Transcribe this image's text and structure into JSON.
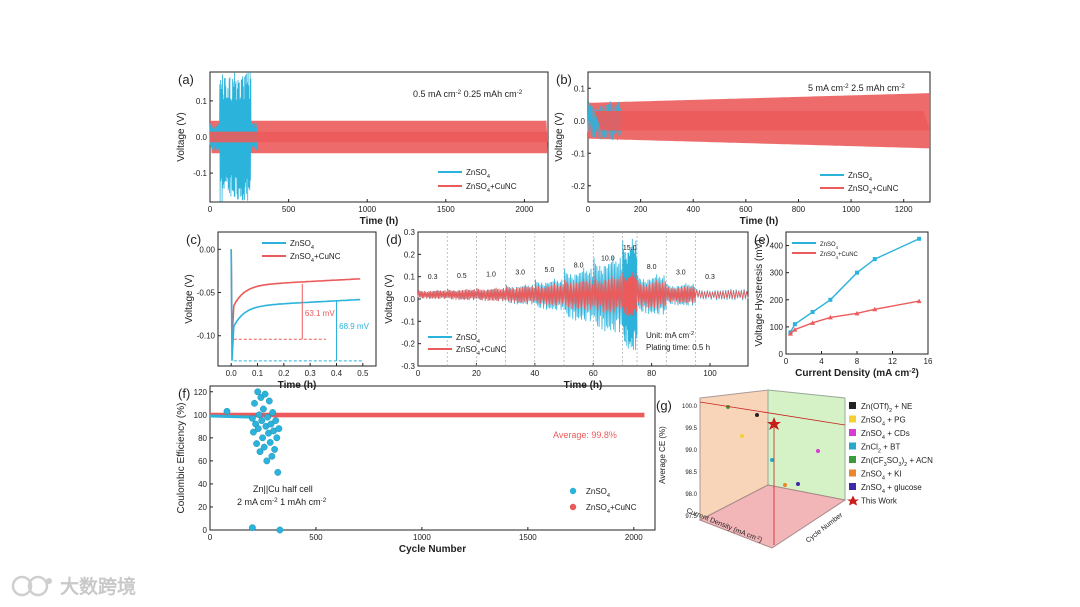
{
  "colors": {
    "znso4": "#2bb3dc",
    "cunc": "#ec5b5b",
    "axis": "#222222"
  },
  "chart_data": [
    {
      "panel": "(a)",
      "type": "line",
      "xlabel": "Time (h)",
      "ylabel": "Voltage (V)",
      "xlim": [
        0,
        2150
      ],
      "ylim": [
        -0.18,
        0.18
      ],
      "xticks": [
        0,
        500,
        1000,
        1500,
        2000
      ],
      "yticks": [
        -0.1,
        0.0,
        0.1
      ],
      "xticklabels": [
        "0",
        "500",
        "1000",
        "1500",
        "2000"
      ],
      "yticklabels": [
        "-0.1",
        "0.0",
        "0.1"
      ],
      "annotation1": "0.5 mA cm",
      "annotation2": "0.25 mAh cm",
      "series": [
        {
          "name": "ZnSO",
          "sub": "4",
          "x_end": 300,
          "amplitude_stable": 0.04,
          "amplitude_max": 0.18,
          "short_circuit_after": 120
        },
        {
          "name": "ZnSO",
          "sub": "4",
          "tail": "+CuNC",
          "x_end": 2150,
          "amplitude": 0.045
        }
      ]
    },
    {
      "panel": "(b)",
      "type": "line",
      "xlabel": "Time (h)",
      "ylabel": "Voltage (V)",
      "xlim": [
        0,
        1300
      ],
      "ylim": [
        -0.25,
        0.15
      ],
      "xticks": [
        0,
        200,
        400,
        600,
        800,
        1000,
        1200
      ],
      "yticks": [
        -0.2,
        -0.1,
        0.0,
        0.1
      ],
      "xticklabels": [
        "0",
        "200",
        "400",
        "600",
        "800",
        "1000",
        "1200"
      ],
      "yticklabels": [
        "-0.2",
        "-0.1",
        "0.0",
        "0.1"
      ],
      "annotation1": "5 mA cm",
      "annotation2": "2.5 mAh cm",
      "series": [
        {
          "name": "ZnSO",
          "sub": "4",
          "x_end": 125,
          "amplitude": 0.06
        },
        {
          "name": "ZnSO",
          "sub": "4",
          "tail": "+CuNC",
          "x_end": 1300,
          "amplitude_start": 0.055,
          "amplitude_end": 0.085
        }
      ]
    },
    {
      "panel": "(c)",
      "type": "line",
      "xlabel": "Time (h)",
      "ylabel": "Voltage (V)",
      "xlim": [
        -0.05,
        0.55
      ],
      "ylim": [
        -0.135,
        0.02
      ],
      "xticks": [
        0.0,
        0.1,
        0.2,
        0.3,
        0.4,
        0.5
      ],
      "yticks": [
        -0.1,
        -0.05,
        0.0
      ],
      "xticklabels": [
        "0.0",
        "0.1",
        "0.2",
        "0.3",
        "0.4",
        "0.5"
      ],
      "yticklabels": [
        "-0.10",
        "-0.05",
        "0.00"
      ],
      "series": [
        {
          "name": "ZnSO",
          "sub": "4",
          "nucleation_v": -0.129,
          "plateau_v": -0.058
        },
        {
          "name": "ZnSO",
          "sub": "4",
          "tail": "+CuNC",
          "nucleation_v": -0.104,
          "plateau_v": -0.034
        }
      ],
      "overpotential_cunc": "63.1 mV",
      "overpotential_znso4": "68.9 mV"
    },
    {
      "panel": "(d)",
      "type": "line",
      "xlabel": "Time (h)",
      "ylabel": "Voltage (V)",
      "xlim": [
        0,
        113
      ],
      "ylim": [
        -0.3,
        0.3
      ],
      "xticks": [
        0,
        20,
        40,
        60,
        80,
        100
      ],
      "yticks": [
        -0.3,
        -0.2,
        -0.1,
        0.0,
        0.1,
        0.2,
        0.3
      ],
      "xticklabels": [
        "0",
        "20",
        "40",
        "60",
        "80",
        "100"
      ],
      "yticklabels": [
        "-0.3",
        "-0.2",
        "-0.1",
        "0.0",
        "0.1",
        "0.2",
        "0.3"
      ],
      "rate_segments": [
        {
          "label": "0.3",
          "start": 0,
          "end": 10,
          "amp_cunc": 0.02,
          "amp_znso4": 0.02
        },
        {
          "label": "0.5",
          "start": 10,
          "end": 20,
          "amp_cunc": 0.025,
          "amp_znso4": 0.025
        },
        {
          "label": "1.0",
          "start": 20,
          "end": 30,
          "amp_cunc": 0.03,
          "amp_znso4": 0.03
        },
        {
          "label": "3.0",
          "start": 30,
          "end": 40,
          "amp_cunc": 0.04,
          "amp_znso4": 0.045
        },
        {
          "label": "5.0",
          "start": 40,
          "end": 50,
          "amp_cunc": 0.05,
          "amp_znso4": 0.07
        },
        {
          "label": "8.0",
          "start": 50,
          "end": 60,
          "amp_cunc": 0.07,
          "amp_znso4": 0.12
        },
        {
          "label": "10.0",
          "start": 60,
          "end": 70,
          "amp_cunc": 0.085,
          "amp_znso4": 0.17
        },
        {
          "label": "15.0",
          "start": 70,
          "end": 75,
          "amp_cunc": 0.1,
          "amp_znso4": 0.25
        },
        {
          "label": "8.0",
          "start": 75,
          "end": 85,
          "amp_cunc": 0.065,
          "amp_znso4": 0.09
        },
        {
          "label": "3.0",
          "start": 85,
          "end": 95,
          "amp_cunc": 0.04,
          "amp_znso4": 0.05
        },
        {
          "label": "0.3",
          "start": 95,
          "end": 113,
          "amp_cunc": 0.02,
          "amp_znso4": 0.025
        }
      ],
      "unit_text": "Unit: mA cm",
      "plating_text": "Plating time:  0.5 h",
      "series": [
        {
          "name": "ZnSO",
          "sub": "4"
        },
        {
          "name": "ZnSO",
          "sub": "4",
          "tail": "+CuNC"
        }
      ]
    },
    {
      "panel": "(e)",
      "type": "line",
      "xlabel": "Current Density (mA cm",
      "ylabel": "Voltage Hysteresis (mV)",
      "xlim": [
        0,
        16
      ],
      "ylim": [
        0,
        450
      ],
      "xticks": [
        0,
        4,
        8,
        12,
        16
      ],
      "yticks": [
        0,
        100,
        200,
        300,
        400
      ],
      "xticklabels": [
        "0",
        "4",
        "8",
        "12",
        "16"
      ],
      "yticklabels": [
        "0",
        "100",
        "200",
        "300",
        "400"
      ],
      "x": [
        0.5,
        1,
        3,
        5,
        8,
        10,
        15
      ],
      "series": [
        {
          "name": "ZnSO",
          "sub": "4",
          "values": [
            80,
            110,
            155,
            200,
            300,
            350,
            425
          ]
        },
        {
          "name": "ZnSO",
          "sub": "4",
          "tail": "+CuNC",
          "values": [
            75,
            90,
            115,
            135,
            150,
            165,
            195
          ]
        }
      ]
    },
    {
      "panel": "(f)",
      "type": "scatter",
      "xlabel": "Cycle Number",
      "ylabel": "Coulombic Efficiency (%)",
      "xlim": [
        0,
        2100
      ],
      "ylim": [
        0,
        125
      ],
      "xticks": [
        0,
        500,
        1000,
        1500,
        2000
      ],
      "yticks": [
        0,
        20,
        40,
        60,
        80,
        100,
        120
      ],
      "xticklabels": [
        "0",
        "500",
        "1000",
        "1500",
        "2000"
      ],
      "yticklabels": [
        "0",
        "20",
        "40",
        "60",
        "80",
        "100",
        "120"
      ],
      "average_text": "Average: 99.8%",
      "cell_text": "Zn||Cu  half cell",
      "cond_text": "2 mA cm",
      "cond_text2": "1 mAh cm",
      "series": [
        {
          "name": "ZnSO",
          "sub": "4",
          "points": [
            [
              80,
              103
            ],
            [
              200,
              97
            ],
            [
              205,
              85
            ],
            [
              210,
              110
            ],
            [
              215,
              92
            ],
            [
              220,
              75
            ],
            [
              225,
              120
            ],
            [
              228,
              88
            ],
            [
              232,
              100
            ],
            [
              236,
              68
            ],
            [
              240,
              115
            ],
            [
              244,
              95
            ],
            [
              248,
              80
            ],
            [
              252,
              105
            ],
            [
              256,
              72
            ],
            [
              260,
              118
            ],
            [
              264,
              90
            ],
            [
              268,
              60
            ],
            [
              272,
              98
            ],
            [
              276,
              84
            ],
            [
              280,
              112
            ],
            [
              284,
              76
            ],
            [
              288,
              92
            ],
            [
              292,
              64
            ],
            [
              296,
              102
            ],
            [
              300,
              86
            ],
            [
              305,
              70
            ],
            [
              310,
              95
            ],
            [
              315,
              80
            ],
            [
              320,
              50
            ],
            [
              325,
              88
            ],
            [
              200,
              2
            ],
            [
              330,
              0
            ]
          ]
        },
        {
          "name": "ZnSO",
          "sub": "4",
          "tail": "+CuNC",
          "x_start": 0,
          "x_end": 2050,
          "value": 99.8
        }
      ]
    },
    {
      "panel": "(g)",
      "type": "scatter",
      "zlabel": "Average CE (%)",
      "xlabel": "Current Density (mA cm",
      "ylabel": "Cycle Number",
      "zticks": [
        "97.5",
        "98.0",
        "98.5",
        "99.0",
        "99.5",
        "100.0"
      ],
      "legend": [
        {
          "label": "Zn(OTf)",
          "sub": "2",
          "tail": " + NE",
          "color": "#222222",
          "marker": "square"
        },
        {
          "label": "ZnSO",
          "sub": "4",
          "tail": " + PG",
          "color": "#f2d233",
          "marker": "square"
        },
        {
          "label": "ZnSO",
          "sub": "4",
          "tail": " + CDs",
          "color": "#d43cd4",
          "marker": "square"
        },
        {
          "label": "ZnCl",
          "sub": "2",
          "tail": " + BT",
          "color": "#2aa7c9",
          "marker": "square"
        },
        {
          "label": "Zn(CF",
          "sub": "3",
          "tail": "SO",
          "sub2": "3",
          "tail2": ")",
          "sub3": "2",
          "tail3": " + ACN",
          "color": "#3c9a3c",
          "marker": "square"
        },
        {
          "label": "ZnSO",
          "sub": "4",
          "tail": " + KI",
          "color": "#e8862b",
          "marker": "square"
        },
        {
          "label": "ZnSO",
          "sub": "4",
          "tail": " + glucose",
          "color": "#3c2aa8",
          "marker": "square"
        },
        {
          "label": "This Work",
          "color": "#c81e1e",
          "marker": "star"
        }
      ]
    }
  ],
  "watermark": {
    "text": "大数跨境"
  }
}
